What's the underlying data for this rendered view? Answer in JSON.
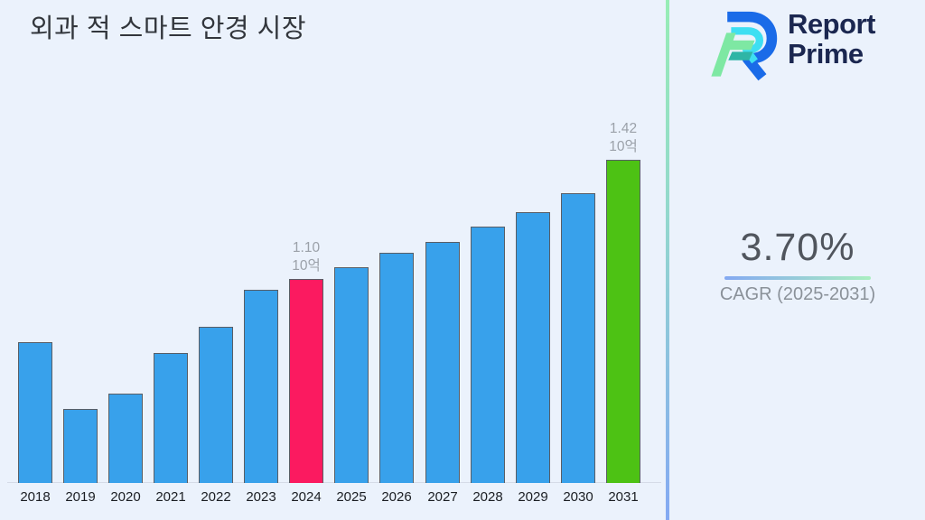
{
  "page": {
    "title": "외과 적 스마트 안경 시장"
  },
  "brand": {
    "line1": "Report",
    "line2": "Prime"
  },
  "stat": {
    "value": "3.70%",
    "caption": "CAGR (2025-2031)"
  },
  "colors": {
    "background": "#EBF2FC",
    "bar_blue": "#38A1EB",
    "bar_pink": "#FB1A60",
    "bar_green": "#4DC214",
    "bar_border": "#595E66",
    "navy": "#1B2750",
    "divider_top": "#97EDB5",
    "divider_bottom": "#84A9F3",
    "underline_left": "#84A9F2",
    "underline_right": "#A9EFC0"
  },
  "chart_data": {
    "type": "bar",
    "title": "외과 적 스마트 안경 시장",
    "xlabel": "",
    "ylabel": "",
    "unit": "10억",
    "categories": [
      "2018",
      "2019",
      "2020",
      "2021",
      "2022",
      "2023",
      "2024",
      "2025",
      "2026",
      "2027",
      "2028",
      "2029",
      "2030",
      "2031"
    ],
    "values": [
      0.93,
      0.75,
      0.79,
      0.9,
      0.97,
      1.07,
      1.1,
      1.13,
      1.17,
      1.2,
      1.24,
      1.28,
      1.33,
      1.42
    ],
    "ylim": [
      0.55,
      1.62
    ],
    "grid": false,
    "legend": "none",
    "bar_default_color": "#38A1EB",
    "highlights": [
      {
        "category": "2024",
        "color": "#FB1A60",
        "label_lines": [
          "1.10",
          "10억"
        ]
      },
      {
        "category": "2031",
        "color": "#4DC214",
        "label_lines": [
          "1.42",
          "10억"
        ]
      }
    ]
  }
}
